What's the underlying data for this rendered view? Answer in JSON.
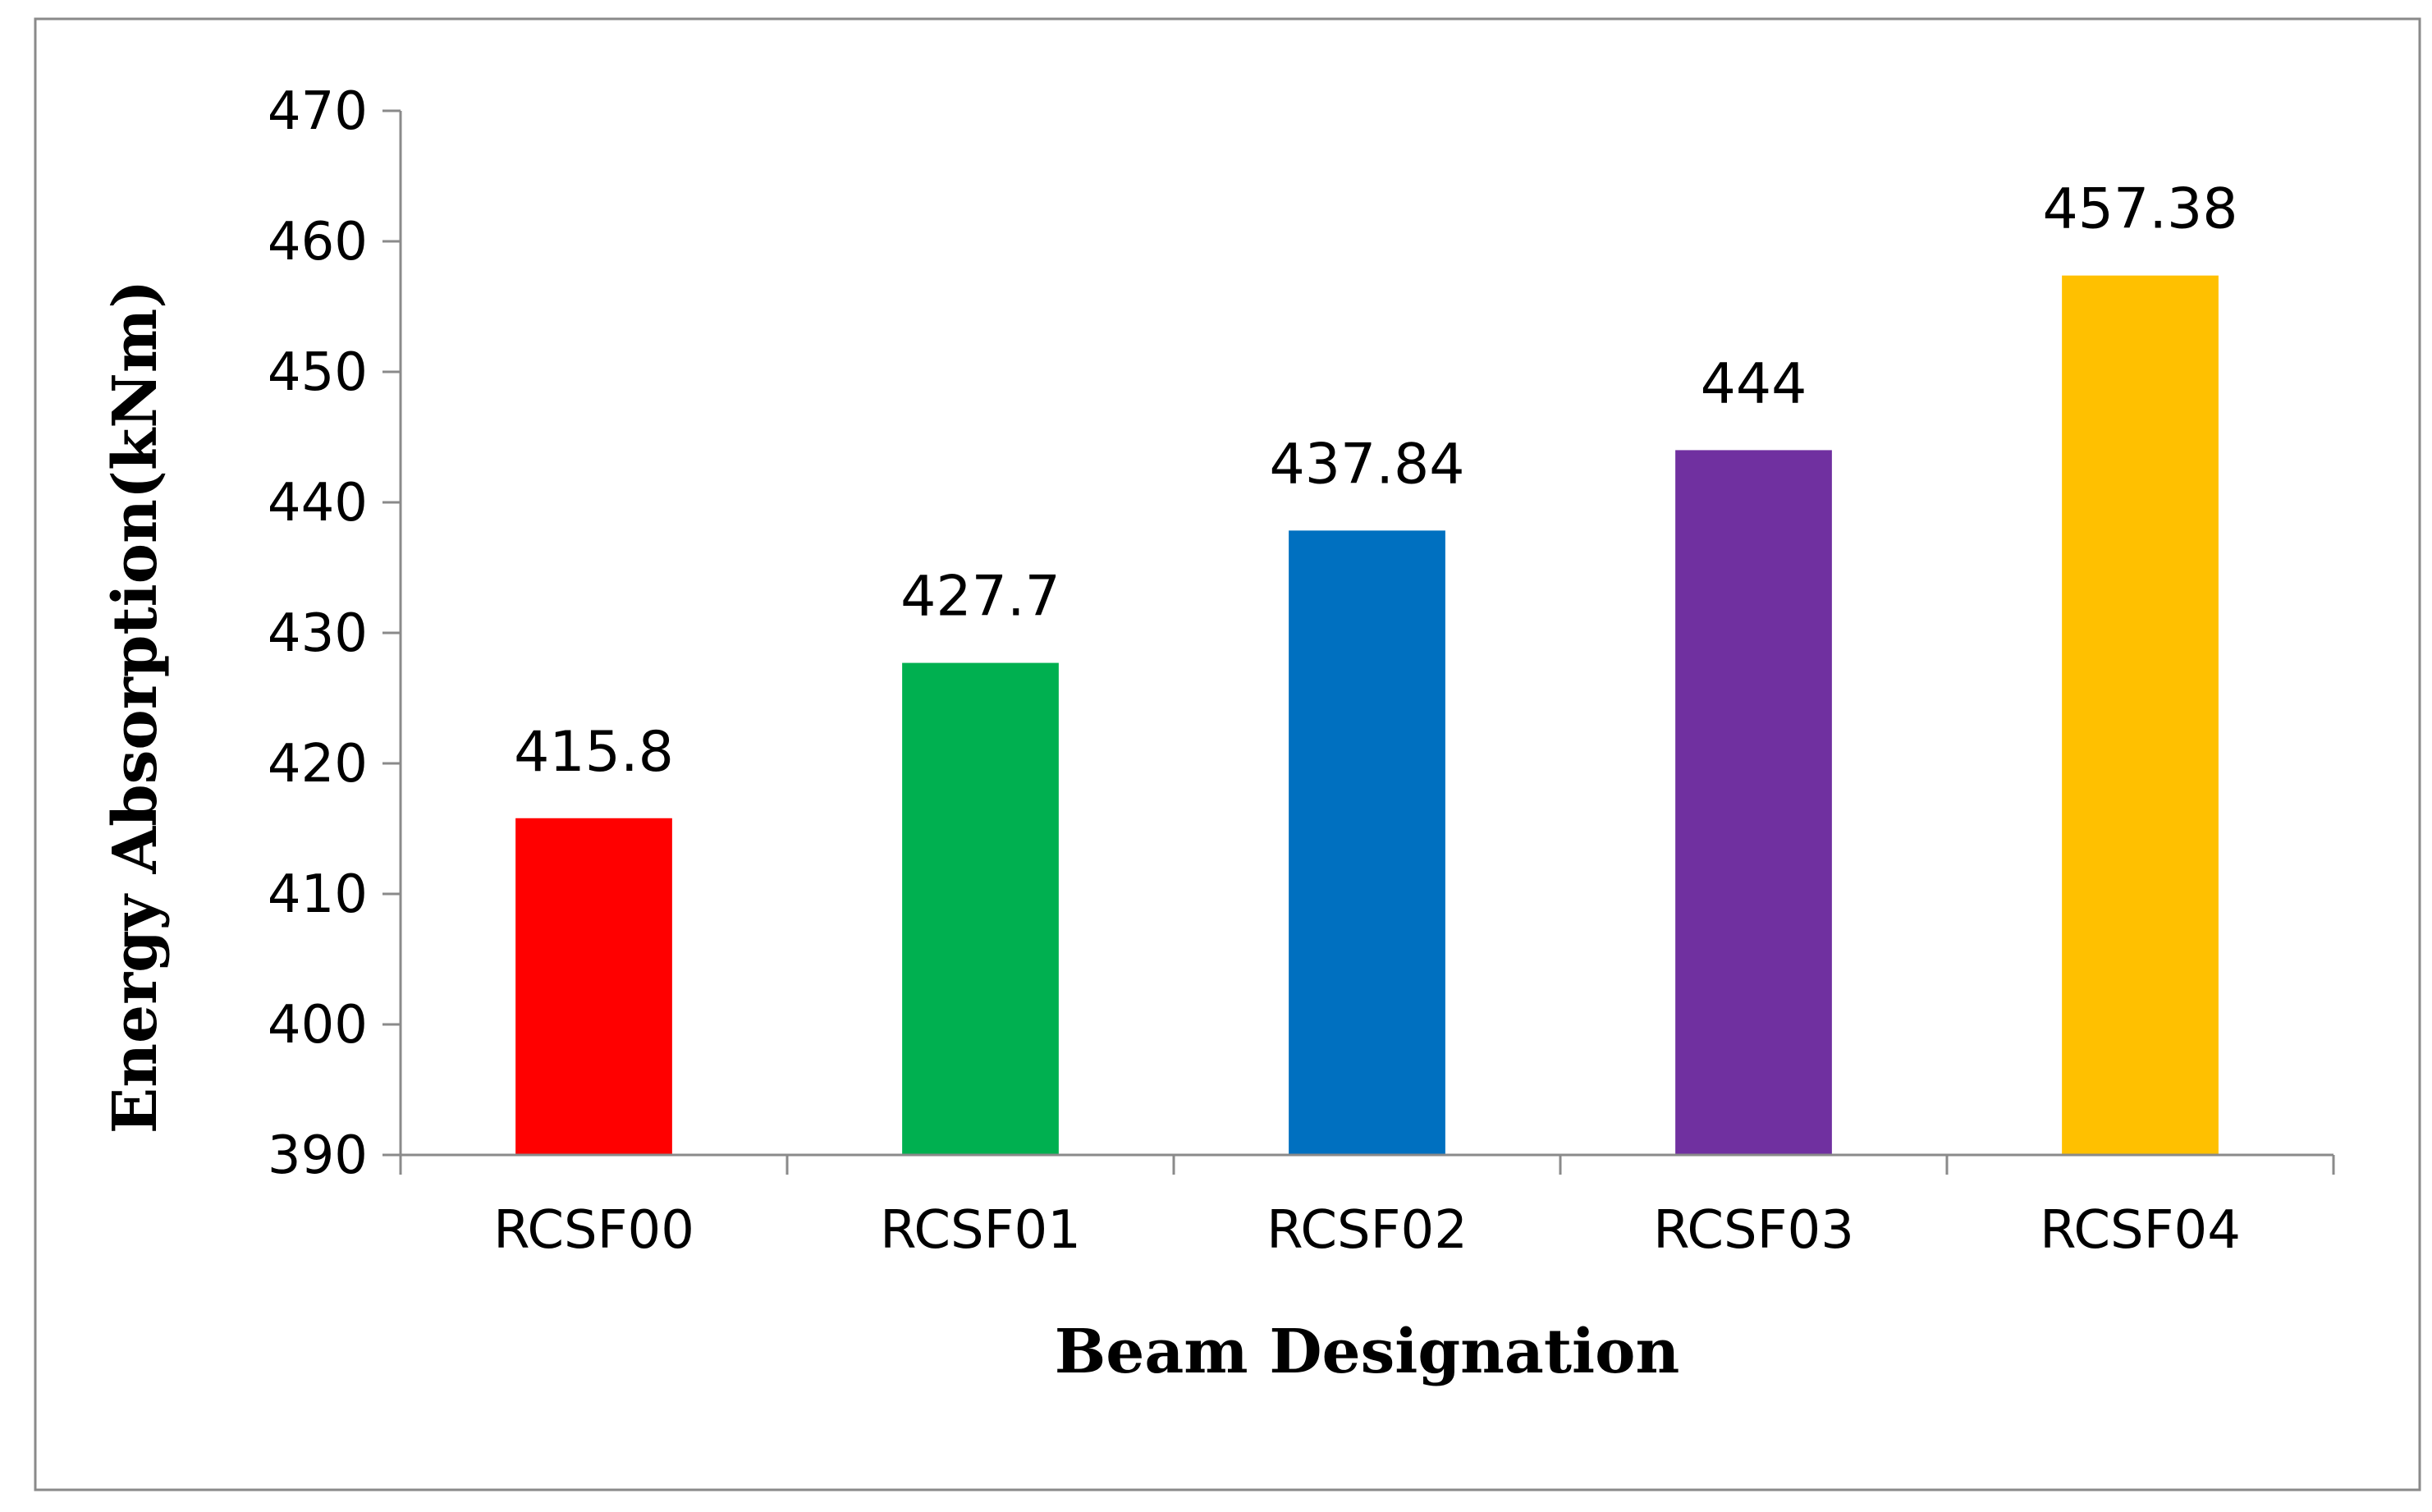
{
  "chart_data": {
    "type": "bar",
    "title": "",
    "xlabel": "Beam Designation",
    "ylabel": "Energy Absorption(kNm)",
    "categories": [
      "RCSF00",
      "RCSF01",
      "RCSF02",
      "RCSF03",
      "RCSF04"
    ],
    "values": [
      415.8,
      427.7,
      437.84,
      444,
      457.38
    ],
    "value_labels": [
      "415.8",
      "427.7",
      "437.84",
      "444",
      "457.38"
    ],
    "bar_colors": [
      "#ff0000",
      "#00b050",
      "#0070c0",
      "#7030a0",
      "#ffc000"
    ],
    "ylim": [
      390,
      470
    ],
    "y_ticks": [
      390,
      400,
      410,
      420,
      430,
      440,
      450,
      460,
      470
    ],
    "grid": false,
    "legend": "none"
  }
}
